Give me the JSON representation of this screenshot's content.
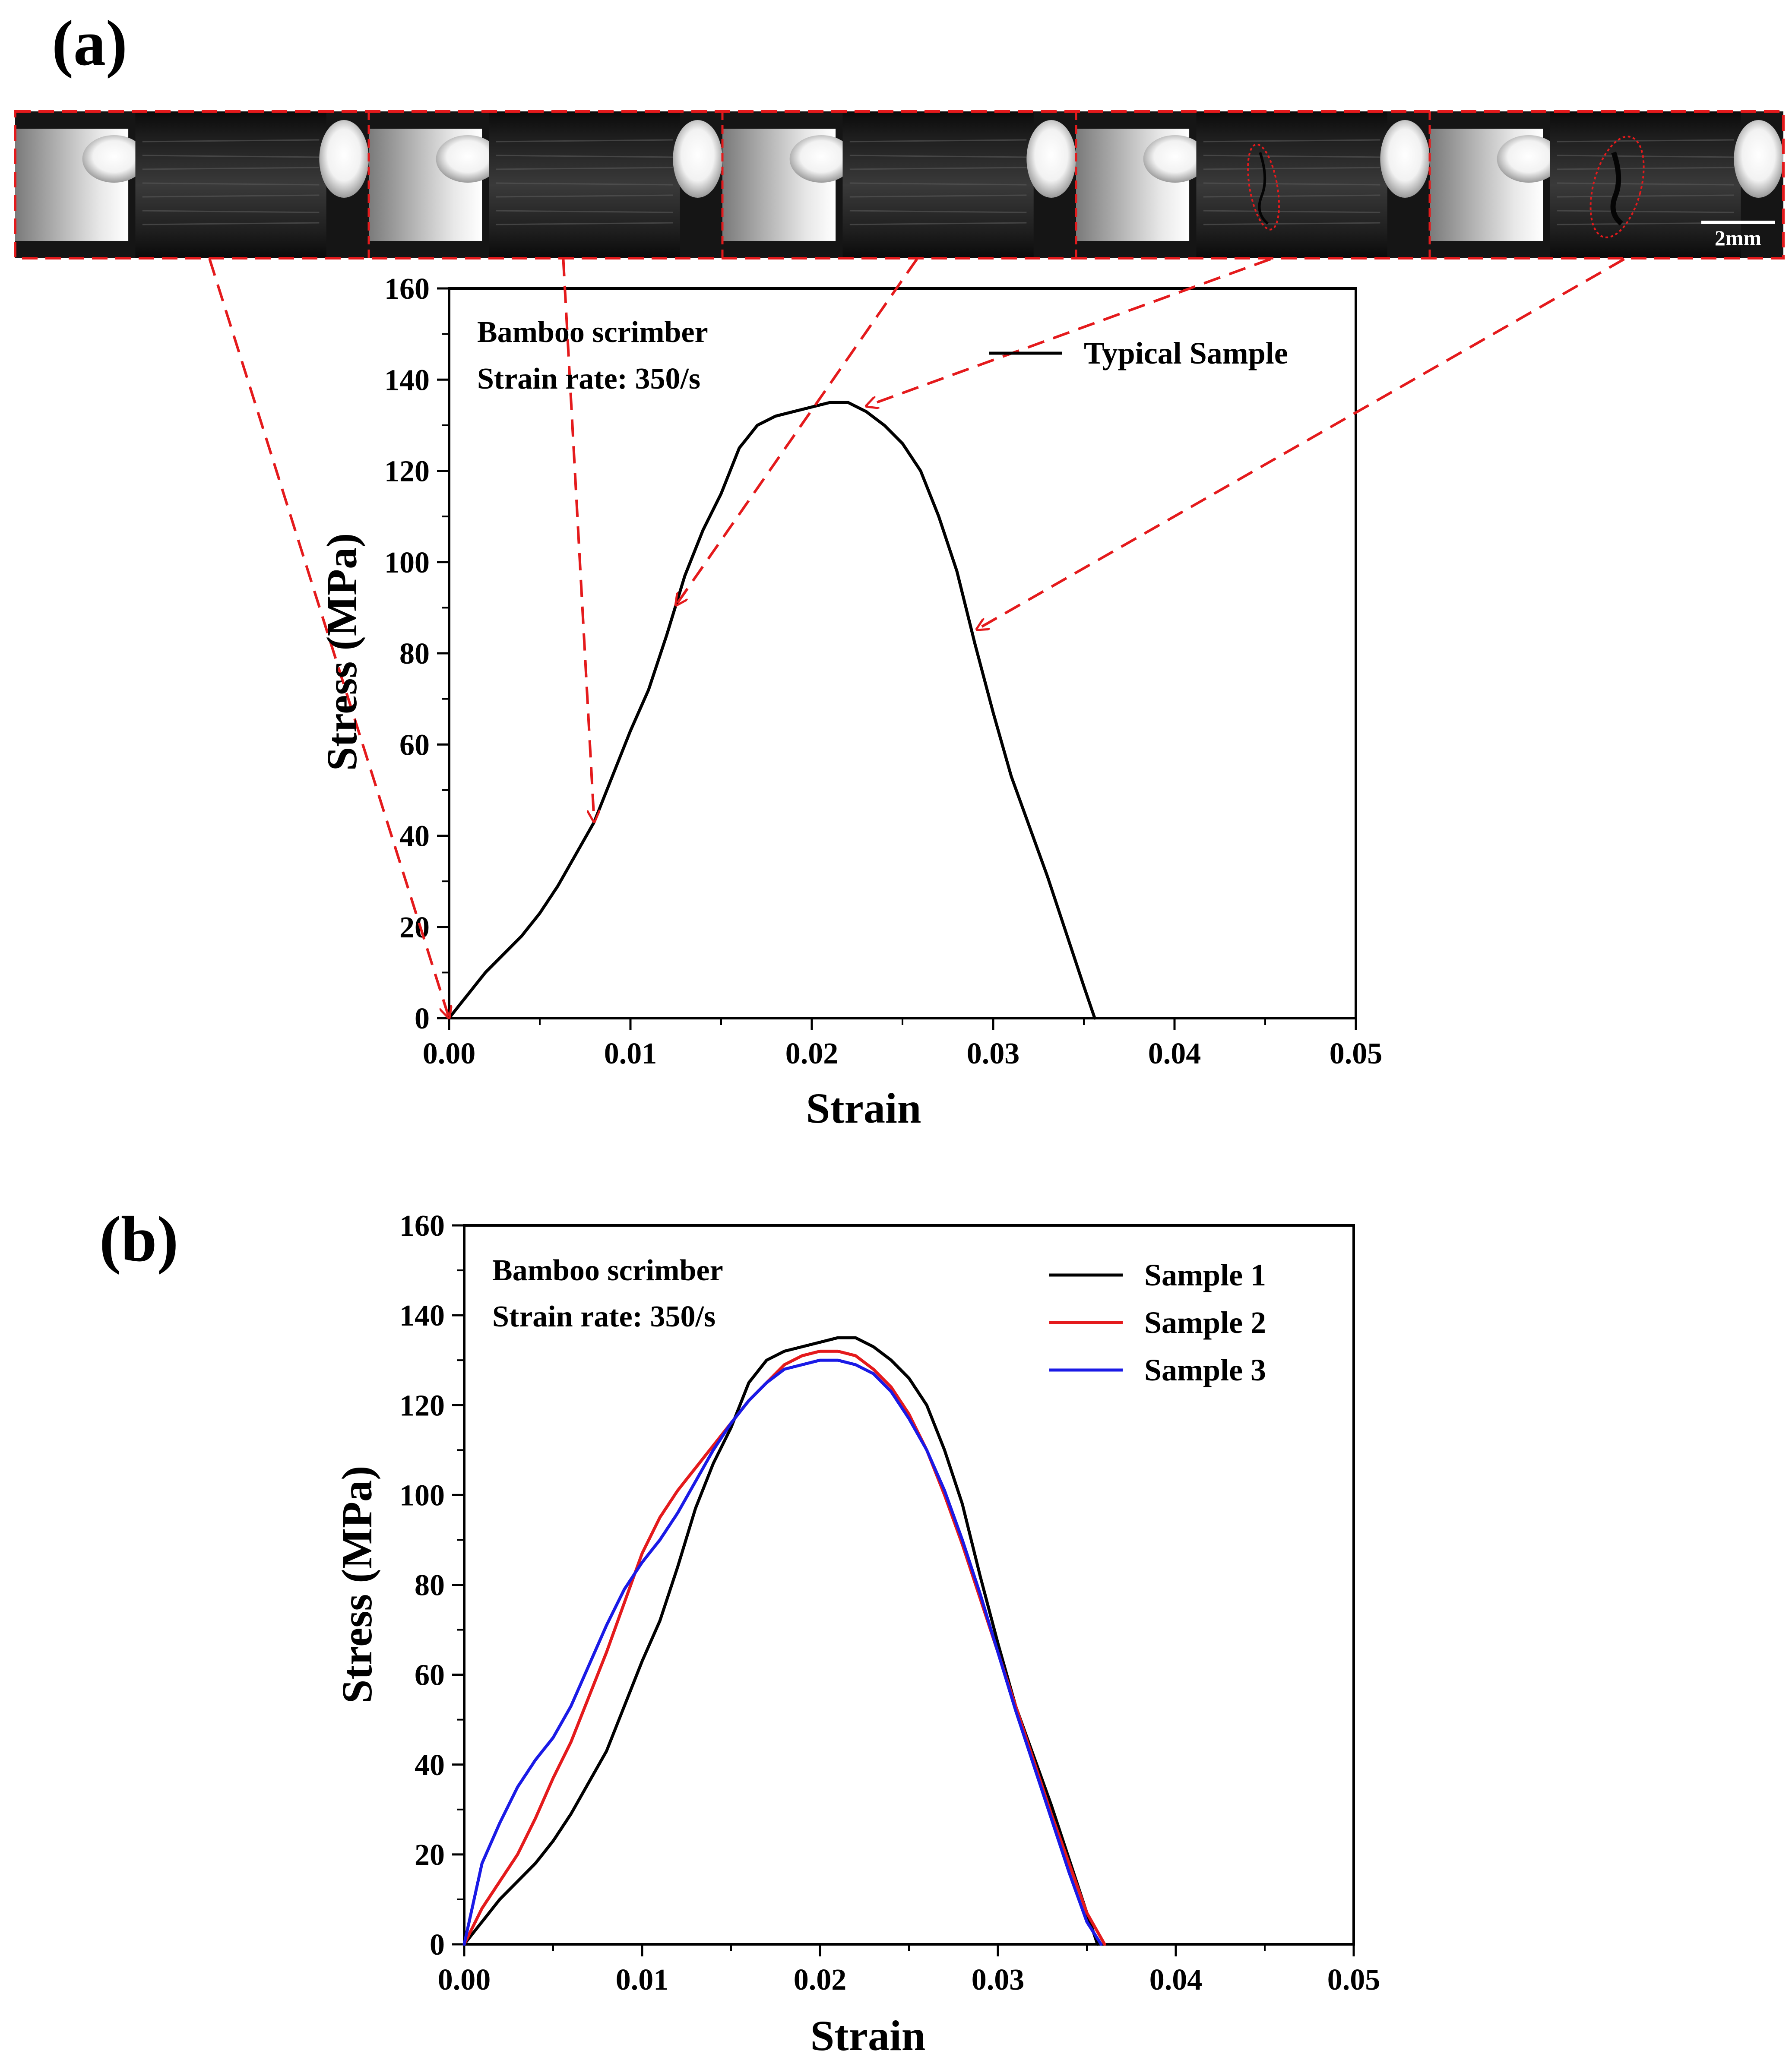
{
  "panel_a": {
    "label": "(a)",
    "scale_bar_label": "2mm",
    "frame_count": 5,
    "chart_data": {
      "type": "line",
      "xlabel": "Strain",
      "ylabel": "Stress (MPa)",
      "xlim": [
        0,
        0.05
      ],
      "ylim": [
        0,
        160
      ],
      "xticks": [
        "0.00",
        "0.01",
        "0.02",
        "0.03",
        "0.04",
        "0.05"
      ],
      "yticks": [
        "0",
        "20",
        "40",
        "60",
        "80",
        "100",
        "120",
        "140",
        "160"
      ],
      "annotation_line1": "Bamboo scrimber",
      "annotation_line2": "Strain rate: 350/s",
      "legend_position": "top-right",
      "series": [
        {
          "name": "Typical Sample",
          "color": "#000000",
          "x": [
            0.0,
            0.001,
            0.002,
            0.003,
            0.004,
            0.005,
            0.006,
            0.007,
            0.008,
            0.009,
            0.01,
            0.011,
            0.012,
            0.013,
            0.014,
            0.015,
            0.016,
            0.017,
            0.018,
            0.019,
            0.02,
            0.021,
            0.022,
            0.023,
            0.024,
            0.025,
            0.026,
            0.027,
            0.028,
            0.029,
            0.03,
            0.031,
            0.032,
            0.033,
            0.034,
            0.035,
            0.0356
          ],
          "y": [
            0,
            5,
            10,
            14,
            18,
            23,
            29,
            36,
            43,
            53,
            63,
            72,
            84,
            97,
            107,
            115,
            125,
            130,
            132,
            133,
            134,
            135,
            135,
            133,
            130,
            126,
            120,
            110,
            98,
            82,
            67,
            53,
            42,
            31,
            19,
            7,
            0
          ]
        }
      ],
      "arrows_to_x": [
        0.0,
        0.008,
        0.0125,
        0.0228,
        0.0288
      ]
    }
  },
  "panel_b": {
    "label": "(b)",
    "chart_data": {
      "type": "line",
      "xlabel": "Strain",
      "ylabel": "Stress (MPa)",
      "xlim": [
        0,
        0.05
      ],
      "ylim": [
        0,
        160
      ],
      "xticks": [
        "0.00",
        "0.01",
        "0.02",
        "0.03",
        "0.04",
        "0.05"
      ],
      "yticks": [
        "0",
        "20",
        "40",
        "60",
        "80",
        "100",
        "120",
        "140",
        "160"
      ],
      "annotation_line1": "Bamboo scrimber",
      "annotation_line2": "Strain rate: 350/s",
      "legend_position": "top-right",
      "series": [
        {
          "name": "Sample 1",
          "color": "#000000",
          "x": [
            0.0,
            0.001,
            0.002,
            0.003,
            0.004,
            0.005,
            0.006,
            0.007,
            0.008,
            0.009,
            0.01,
            0.011,
            0.012,
            0.013,
            0.014,
            0.015,
            0.016,
            0.017,
            0.018,
            0.019,
            0.02,
            0.021,
            0.022,
            0.023,
            0.024,
            0.025,
            0.026,
            0.027,
            0.028,
            0.029,
            0.03,
            0.031,
            0.032,
            0.033,
            0.034,
            0.035,
            0.0356
          ],
          "y": [
            0,
            5,
            10,
            14,
            18,
            23,
            29,
            36,
            43,
            53,
            63,
            72,
            84,
            97,
            107,
            115,
            125,
            130,
            132,
            133,
            134,
            135,
            135,
            133,
            130,
            126,
            120,
            110,
            98,
            82,
            67,
            53,
            42,
            31,
            19,
            7,
            0
          ]
        },
        {
          "name": "Sample 2",
          "color": "#e41a1c",
          "x": [
            0.0,
            0.001,
            0.002,
            0.003,
            0.004,
            0.005,
            0.006,
            0.007,
            0.008,
            0.009,
            0.01,
            0.011,
            0.012,
            0.013,
            0.014,
            0.015,
            0.016,
            0.017,
            0.018,
            0.019,
            0.02,
            0.021,
            0.022,
            0.023,
            0.024,
            0.025,
            0.026,
            0.027,
            0.028,
            0.029,
            0.03,
            0.031,
            0.032,
            0.033,
            0.034,
            0.035,
            0.036
          ],
          "y": [
            0,
            8,
            14,
            20,
            28,
            37,
            45,
            55,
            65,
            76,
            87,
            95,
            101,
            106,
            111,
            116,
            121,
            125,
            129,
            131,
            132,
            132,
            131,
            128,
            124,
            118,
            110,
            100,
            89,
            77,
            65,
            53,
            41,
            29,
            18,
            7,
            0
          ]
        },
        {
          "name": "Sample 3",
          "color": "#1a1ae6",
          "x": [
            0.0,
            0.001,
            0.002,
            0.003,
            0.004,
            0.005,
            0.006,
            0.007,
            0.008,
            0.009,
            0.01,
            0.011,
            0.012,
            0.013,
            0.014,
            0.015,
            0.016,
            0.017,
            0.018,
            0.019,
            0.02,
            0.021,
            0.022,
            0.023,
            0.024,
            0.025,
            0.026,
            0.027,
            0.028,
            0.029,
            0.03,
            0.031,
            0.032,
            0.033,
            0.034,
            0.035,
            0.0358
          ],
          "y": [
            0,
            18,
            27,
            35,
            41,
            46,
            53,
            62,
            71,
            79,
            85,
            90,
            96,
            103,
            110,
            116,
            121,
            125,
            128,
            129,
            130,
            130,
            129,
            127,
            123,
            117,
            110,
            101,
            90,
            78,
            65,
            52,
            40,
            28,
            16,
            5,
            0
          ]
        }
      ]
    }
  }
}
